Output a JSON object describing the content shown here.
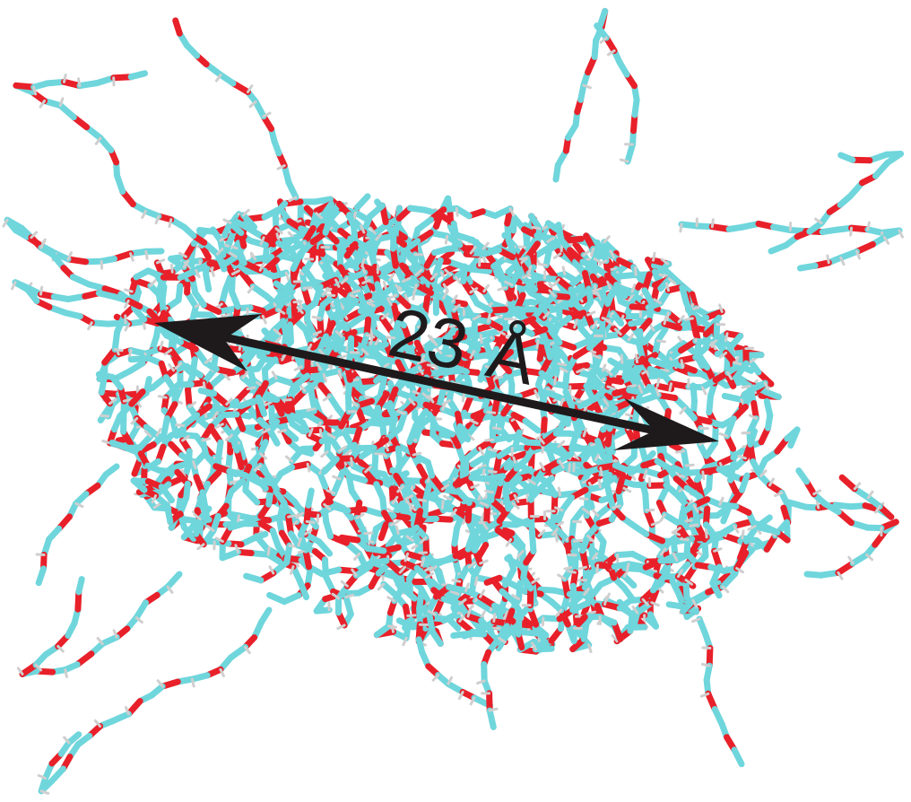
{
  "measurement": {
    "value": "23",
    "unit": "Å"
  },
  "colors": {
    "carbon": "#6fd6dc",
    "oxygen": "#e8202a",
    "hydrogen": "#cfcfcf",
    "arrow": "#1e1a1c",
    "background": "#ffffff"
  }
}
